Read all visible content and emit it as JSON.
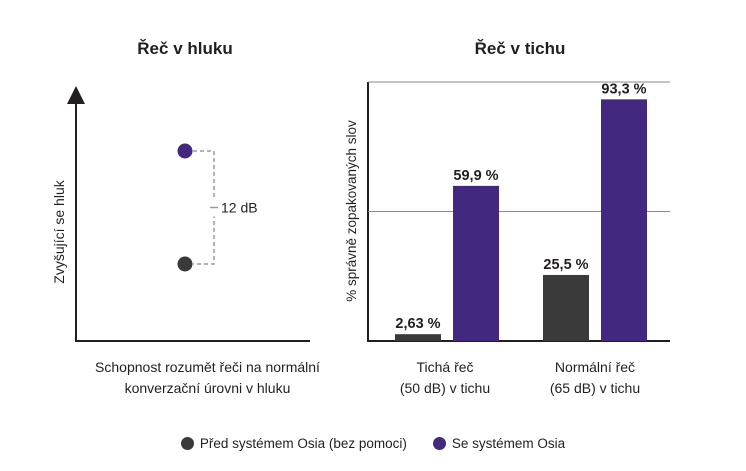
{
  "colors": {
    "before": "#3a3a3a",
    "with": "#42287f",
    "axis": "#231f20",
    "midline": "#8a8a8a",
    "bracket": "#9a9a9a"
  },
  "chart_data": [
    {
      "type": "scatter",
      "title": "Řeč v hluku",
      "ylabel": "Zvyšující se hluk",
      "xlabel": "Schopnost rozumět řeči na normální konverzační úrovni v hluku",
      "xlabel_lines": [
        "Schopnost rozumět řeči na normální",
        "konverzační úrovni v hluku"
      ],
      "series": [
        {
          "name": "Před systémem Osia (bez pomoci)",
          "level": 0
        },
        {
          "name": "Se systémem Osia",
          "level": 12
        }
      ],
      "annotation": "12 dB",
      "grid": false
    },
    {
      "type": "bar",
      "title": "Řeč v tichu",
      "ylabel": "% správně zopakovaných slov",
      "ylim": [
        0,
        100
      ],
      "categories": [
        [
          "Tichá řeč",
          "(50 dB) v tichu"
        ],
        [
          "Normální řeč",
          "(65 dB) v tichu"
        ]
      ],
      "series": [
        {
          "name": "Před systémem Osia (bez pomoci)",
          "values": [
            2.63,
            25.5
          ],
          "labels": [
            "2,63 %",
            "25,5 %"
          ]
        },
        {
          "name": "Se systémem Osia",
          "values": [
            59.9,
            93.3
          ],
          "labels": [
            "59,9 %",
            "93,3 %"
          ]
        }
      ],
      "legend_position": "bottom",
      "grid": false
    }
  ],
  "legend": [
    {
      "label": "Před systémem Osia (bez pomoci)"
    },
    {
      "label": "Se systémem Osia"
    }
  ]
}
